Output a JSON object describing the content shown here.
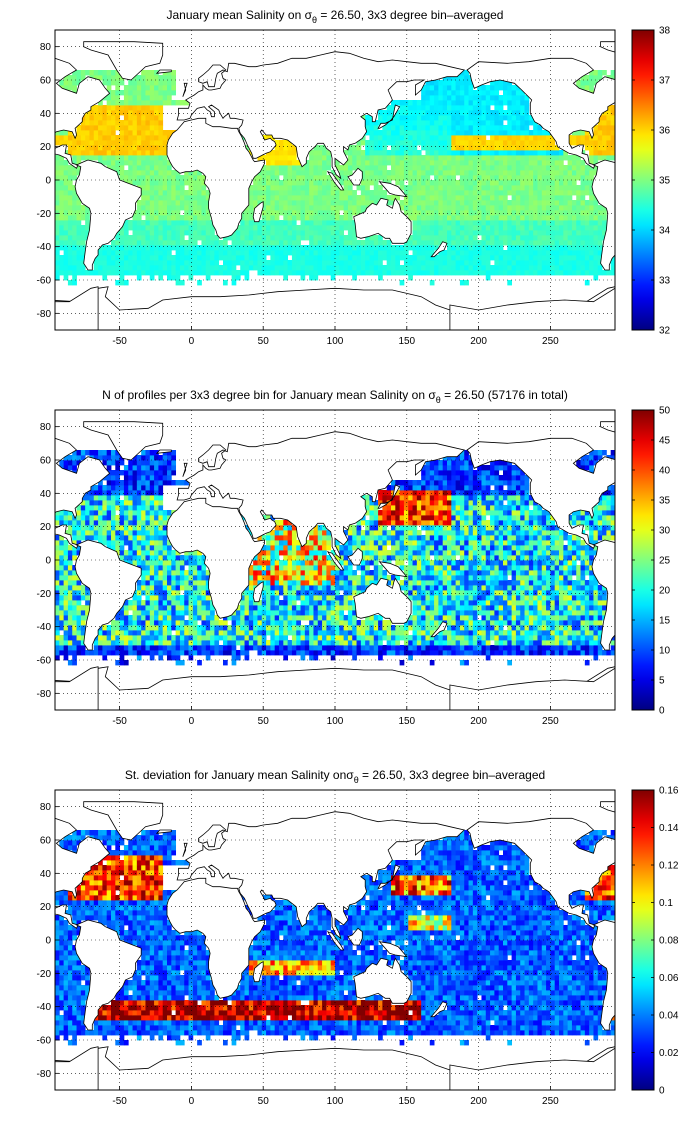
{
  "panels": [
    {
      "title_pre": "January mean Salinity on ",
      "title_sym": "σ",
      "title_sub": "θ",
      "title_post": " = 26.50, 3x3 degree bin–averaged",
      "field": "salinity",
      "colorbar": {
        "min": 32,
        "max": 38,
        "ticks": [
          "32",
          "33",
          "34",
          "35",
          "36",
          "37",
          "38"
        ]
      }
    },
    {
      "title_pre": "N of profiles per 3x3 degree bin for January mean Salinity on ",
      "title_sym": "σ",
      "title_sub": "θ",
      "title_post": " = 26.50 (57176 in total)",
      "field": "count",
      "colorbar": {
        "min": 0,
        "max": 50,
        "ticks": [
          "0",
          "5",
          "10",
          "15",
          "20",
          "25",
          "30",
          "35",
          "40",
          "45",
          "50"
        ]
      }
    },
    {
      "title_pre": "St. deviation for January mean Salinity on",
      "title_sym": "σ",
      "title_sub": "θ",
      "title_post": " = 26.50, 3x3 degree bin–averaged",
      "field": "stdev",
      "colorbar": {
        "min": 0,
        "max": 0.16,
        "ticks": [
          "0",
          "0.02",
          "0.04",
          "0.06",
          "0.08",
          "0.1",
          "0.12",
          "0.14",
          "0.16"
        ]
      }
    }
  ],
  "map": {
    "x_ticks": [
      "-50",
      "0",
      "50",
      "100",
      "150",
      "200",
      "250"
    ],
    "y_ticks": [
      "80",
      "60",
      "40",
      "20",
      "0",
      "-20",
      "-40",
      "-60",
      "-80"
    ],
    "lon_range": [
      -95,
      295
    ],
    "lat_range": [
      -90,
      90
    ],
    "grid": "dotted",
    "colormap": "jet"
  }
}
